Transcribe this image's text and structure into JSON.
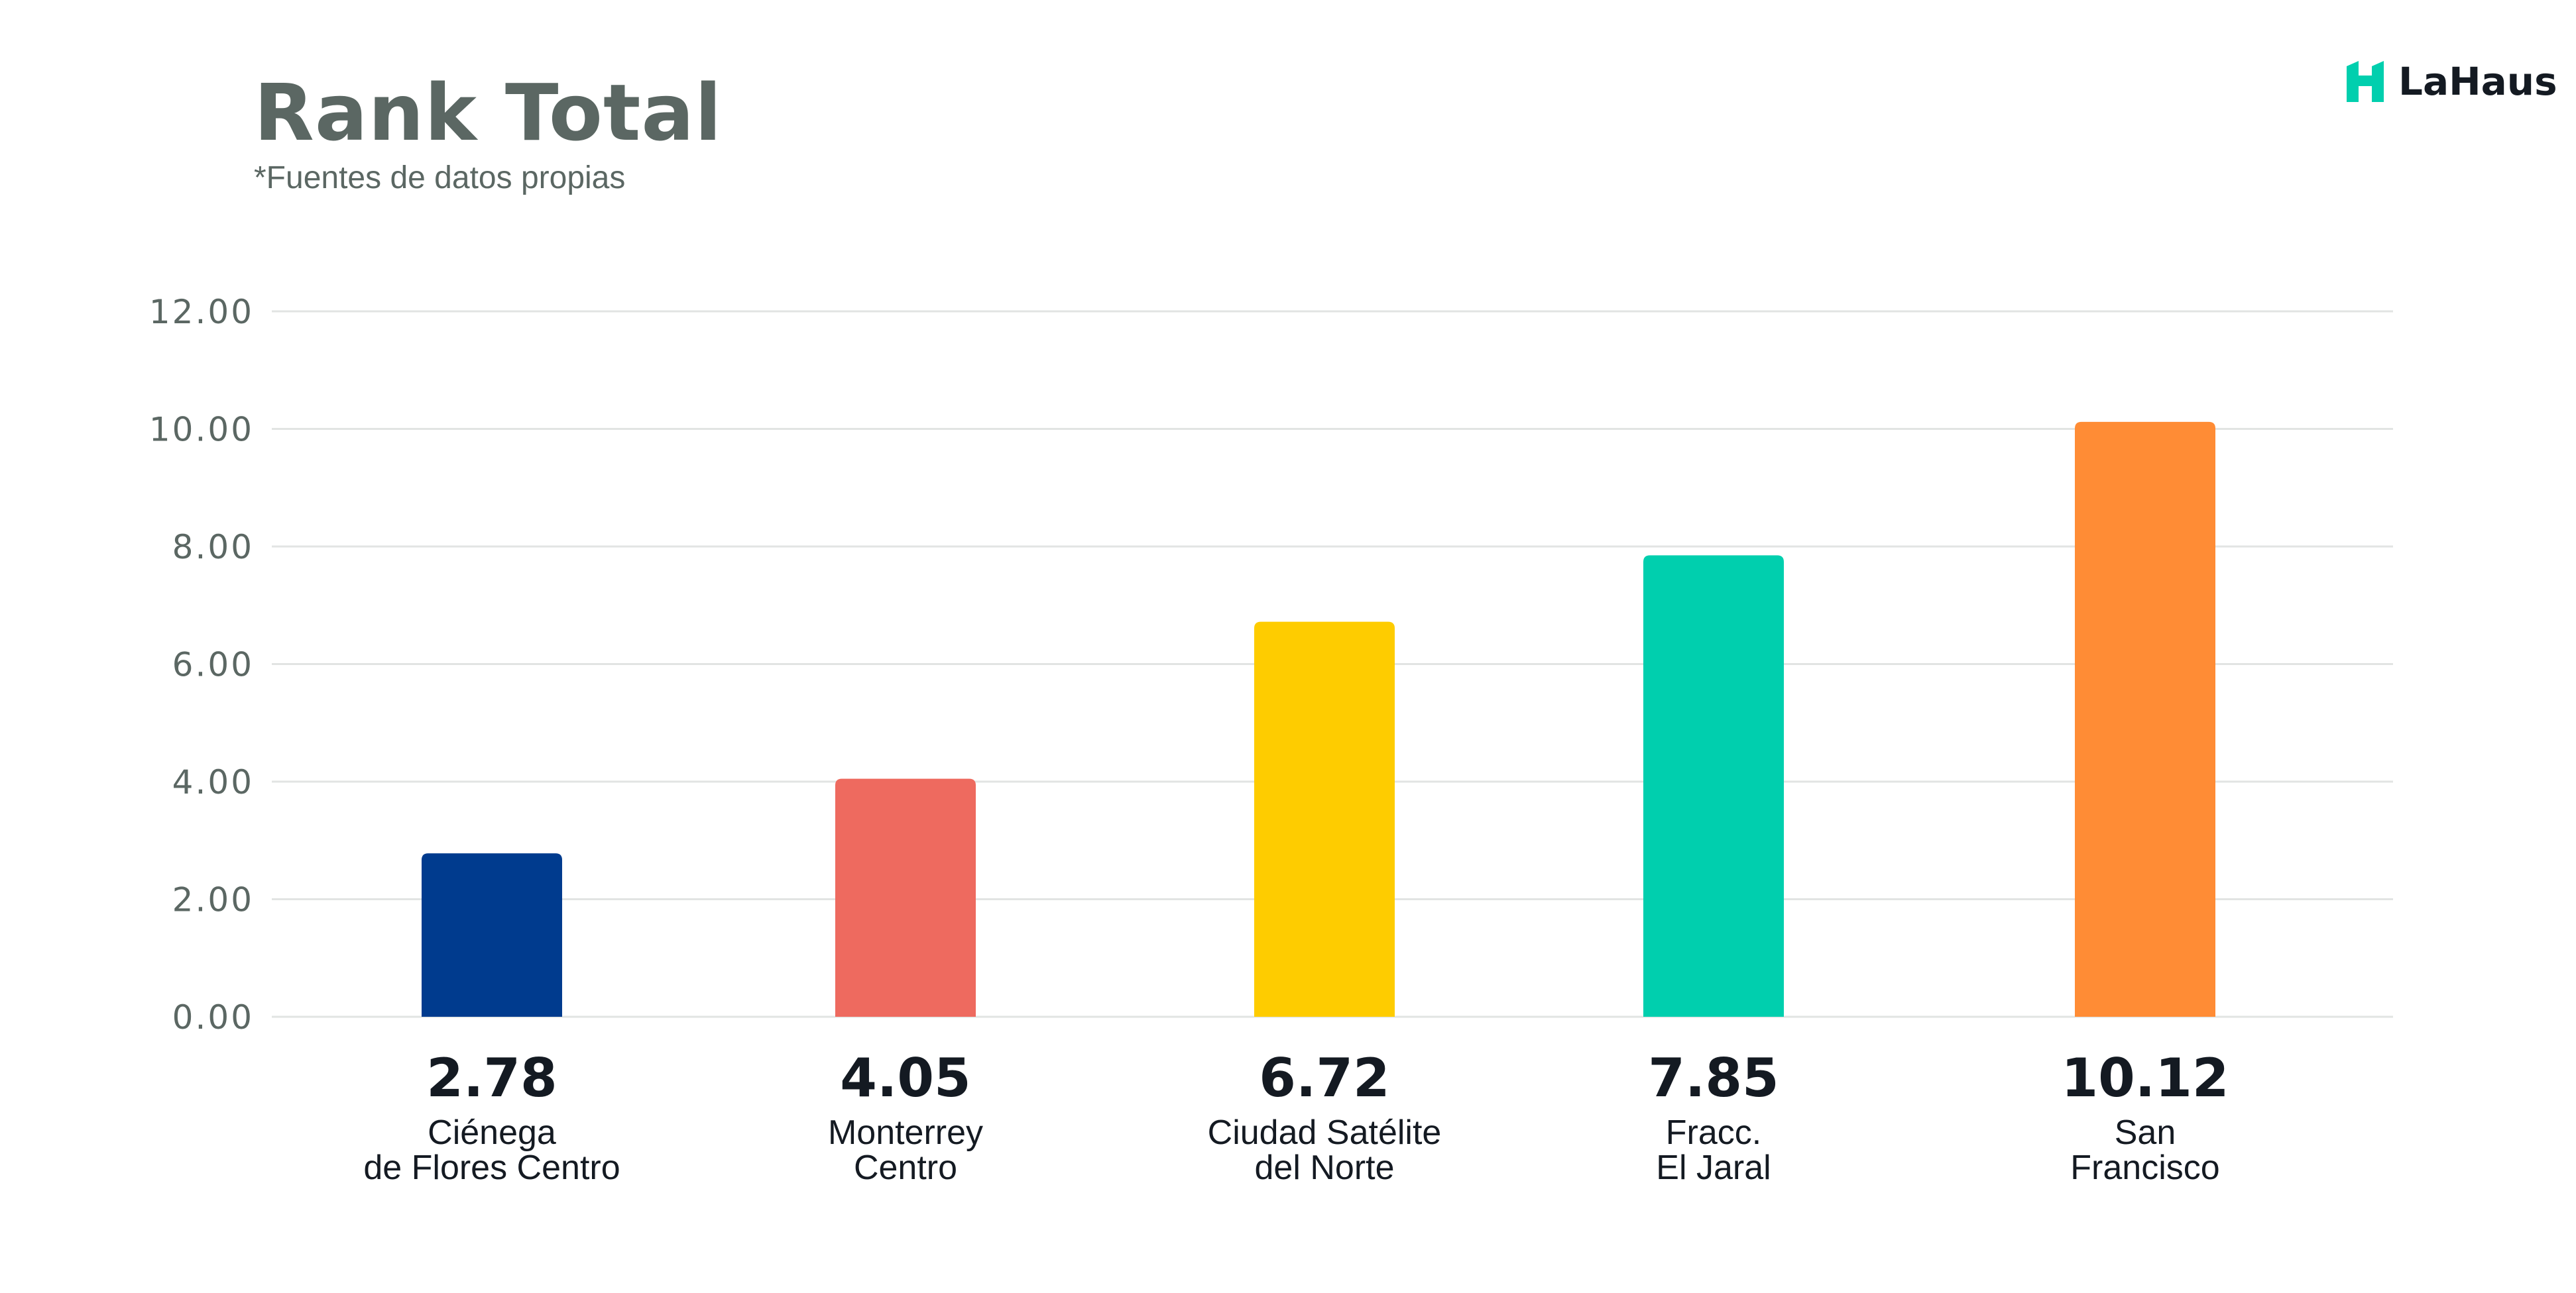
{
  "header": {
    "title": "Rank Total",
    "subtitle": "*Fuentes de datos propias"
  },
  "brand": {
    "name": "LaHaus",
    "logo_icon": "house-h-icon",
    "color": "#00cfae"
  },
  "chart_data": {
    "type": "bar",
    "title": "Rank Total",
    "subtitle": "*Fuentes de datos propias",
    "xlabel": "",
    "ylabel": "",
    "ylim": [
      0,
      12
    ],
    "y_ticks": [
      "0.00",
      "2.00",
      "4.00",
      "6.00",
      "8.00",
      "10.00",
      "12.00"
    ],
    "grid": true,
    "legend": "none",
    "categories": [
      "Ciénega\nde Flores Centro",
      "Monterrey\nCentro",
      "Ciudad Satélite\ndel Norte",
      "Fracc.\nEl Jaral",
      "San\nFrancisco"
    ],
    "values": [
      2.78,
      4.05,
      6.72,
      7.85,
      10.12
    ],
    "value_labels": [
      "2.78",
      "4.05",
      "6.72",
      "7.85",
      "10.12"
    ],
    "colors": [
      "#003b8e",
      "#ee6a5f",
      "#fecc00",
      "#00cfae",
      "#ff8c35"
    ]
  }
}
